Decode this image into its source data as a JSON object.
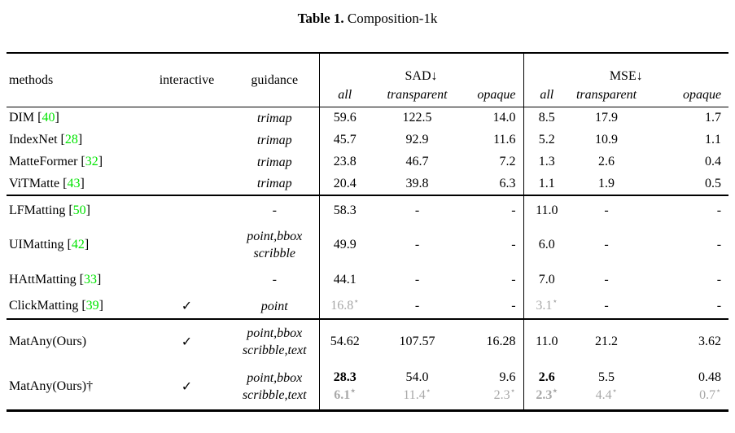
{
  "title": {
    "bold": "Table 1.",
    "rest": " Composition-1k"
  },
  "colors": {
    "citation_green": "#00e400",
    "muted_gray": "#a8a8a8"
  },
  "symbols": {
    "check": "✓",
    "star": "⋆",
    "down_arrow": "↓",
    "dash": "-"
  },
  "header": {
    "methods": "methods",
    "interactive": "interactive",
    "guidance": "guidance",
    "sad": "SAD↓",
    "mse": "MSE↓",
    "sub_all": "all",
    "sub_transparent": "transparent",
    "sub_opaque": "opaque"
  },
  "groups": [
    {
      "rows": [
        {
          "method": "DIM",
          "cite": "40",
          "interactive": false,
          "guidance": [
            "trimap"
          ],
          "values": [
            [
              {
                "t": "59.6"
              },
              {
                "t": "122.5"
              },
              {
                "t": "14.0"
              },
              {
                "t": "8.5"
              },
              {
                "t": "17.9"
              },
              {
                "t": "1.7"
              }
            ]
          ]
        },
        {
          "method": "IndexNet",
          "cite": "28",
          "interactive": false,
          "guidance": [
            "trimap"
          ],
          "values": [
            [
              {
                "t": "45.7"
              },
              {
                "t": "92.9"
              },
              {
                "t": "11.6"
              },
              {
                "t": "5.2"
              },
              {
                "t": "10.9"
              },
              {
                "t": "1.1"
              }
            ]
          ]
        },
        {
          "method": "MatteFormer",
          "cite": "32",
          "interactive": false,
          "guidance": [
            "trimap"
          ],
          "values": [
            [
              {
                "t": "23.8"
              },
              {
                "t": "46.7"
              },
              {
                "t": "7.2"
              },
              {
                "t": "1.3"
              },
              {
                "t": "2.6"
              },
              {
                "t": "0.4"
              }
            ]
          ]
        },
        {
          "method": "ViTMatte",
          "cite": "43",
          "interactive": false,
          "guidance": [
            "trimap"
          ],
          "values": [
            [
              {
                "t": "20.4"
              },
              {
                "t": "39.8"
              },
              {
                "t": "6.3"
              },
              {
                "t": "1.1"
              },
              {
                "t": "1.9"
              },
              {
                "t": "0.5"
              }
            ]
          ]
        }
      ]
    },
    {
      "rows": [
        {
          "method": "LFMatting",
          "cite": "50",
          "interactive": false,
          "guidance": [
            "-"
          ],
          "values": [
            [
              {
                "t": "58.3"
              },
              {
                "t": "-"
              },
              {
                "t": "-"
              },
              {
                "t": "11.0"
              },
              {
                "t": "-"
              },
              {
                "t": "-"
              }
            ]
          ]
        },
        {
          "method": "UIMatting",
          "cite": "42",
          "interactive": false,
          "guidance": [
            "point,bbox",
            "scribble"
          ],
          "values": [
            [
              {
                "t": "49.9"
              },
              {
                "t": "-"
              },
              {
                "t": "-"
              },
              {
                "t": "6.0"
              },
              {
                "t": "-"
              },
              {
                "t": "-"
              }
            ]
          ]
        },
        {
          "method": "HAttMatting",
          "cite": "33",
          "interactive": false,
          "guidance": [
            "-"
          ],
          "values": [
            [
              {
                "t": "44.1"
              },
              {
                "t": "-"
              },
              {
                "t": "-"
              },
              {
                "t": "7.0"
              },
              {
                "t": "-"
              },
              {
                "t": "-"
              }
            ]
          ]
        },
        {
          "method": "ClickMatting",
          "cite": "39",
          "interactive": true,
          "guidance": [
            "point"
          ],
          "values": [
            [
              {
                "t": "16.8",
                "gray": true,
                "star": true
              },
              {
                "t": "-"
              },
              {
                "t": "-"
              },
              {
                "t": "3.1",
                "gray": true,
                "star": true
              },
              {
                "t": "-"
              },
              {
                "t": "-"
              }
            ]
          ]
        }
      ]
    },
    {
      "rows": [
        {
          "method": "MatAny(Ours)",
          "cite": null,
          "interactive": true,
          "guidance": [
            "point,bbox",
            "scribble,text"
          ],
          "values": [
            [
              {
                "t": "54.62"
              },
              {
                "t": "107.57"
              },
              {
                "t": "16.28"
              },
              {
                "t": "11.0"
              },
              {
                "t": "21.2"
              },
              {
                "t": "3.62"
              }
            ]
          ]
        },
        {
          "method": "MatAny(Ours)†",
          "cite": null,
          "interactive": true,
          "guidance": [
            "point,bbox",
            "scribble,text"
          ],
          "values": [
            [
              {
                "t": "28.3",
                "bold": true
              },
              {
                "t": "54.0"
              },
              {
                "t": "9.6"
              },
              {
                "t": "2.6",
                "bold": true
              },
              {
                "t": "5.5"
              },
              {
                "t": "0.48"
              }
            ],
            [
              {
                "t": "6.1",
                "gray": true,
                "bold": true,
                "star": true
              },
              {
                "t": "11.4",
                "gray": true,
                "star": true
              },
              {
                "t": "2.3",
                "gray": true,
                "star": true
              },
              {
                "t": "2.3",
                "gray": true,
                "bold": true,
                "star": true
              },
              {
                "t": "4.4",
                "gray": true,
                "star": true
              },
              {
                "t": "0.7",
                "gray": true,
                "star": true
              }
            ]
          ]
        }
      ]
    }
  ]
}
